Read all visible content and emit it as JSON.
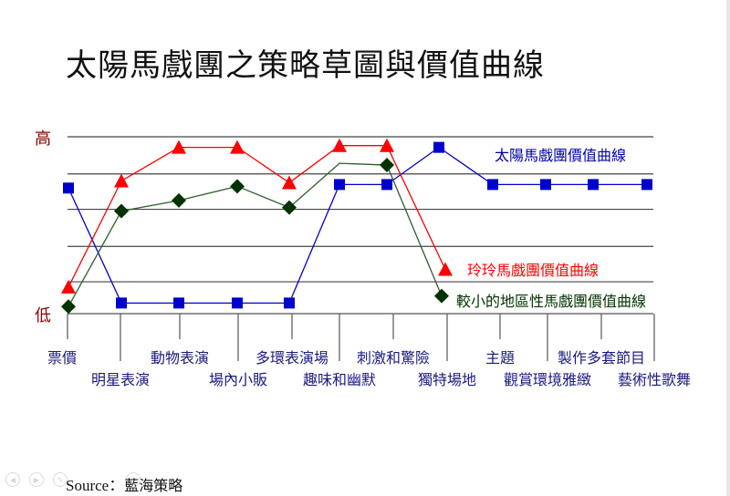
{
  "title": "太陽馬戲團之策略草圖與價值曲線",
  "footer": {
    "source_label": "Source：",
    "source_value": "藍海策略"
  },
  "nav_icons": [
    "prev-icon",
    "next-icon",
    "pen-icon",
    "more-icon"
  ],
  "chart_data": {
    "type": "line",
    "title": "太陽馬戲團之策略草圖與價值曲線",
    "ylabel_high": "高",
    "ylabel_low": "低",
    "y_scale": "relative value 0 (低) to 100 (高)",
    "ylim": [
      0,
      100
    ],
    "grid": true,
    "gridlines": [
      100,
      79,
      59,
      38,
      18
    ],
    "categories": [
      "票價",
      "明星表演",
      "動物表演",
      "場內小販",
      "多環表演場",
      "趣味和幽默",
      "刺激和驚險",
      "獨特場地",
      "主題",
      "觀賞環境雅緻",
      "製作多套節目",
      "藝術性歌舞"
    ],
    "category_label_rows": [
      0,
      1,
      0,
      1,
      0,
      1,
      0,
      1,
      0,
      1,
      0,
      1
    ],
    "series": [
      {
        "name": "太陽馬戲團價值曲線",
        "color": "#0000cc",
        "marker": "square",
        "values": [
          71,
          6,
          6,
          6,
          6,
          73,
          73,
          94,
          73,
          73,
          73,
          73
        ]
      },
      {
        "name": "玲玲馬戲團價值曲線",
        "color": "#ff0000",
        "marker": "triangle",
        "values": [
          15,
          75,
          94,
          94,
          74,
          95,
          95,
          25,
          null,
          null,
          null,
          null
        ],
        "end_x_offset": 7
      },
      {
        "name": "較小的地區性馬戲團價值曲線",
        "color": "#003300",
        "line_color": "#2e5e2e",
        "marker": "diamond",
        "values": [
          4,
          58,
          64,
          72,
          60,
          85,
          84,
          10,
          null,
          null,
          null,
          null
        ],
        "hidden_markers": [
          5
        ],
        "end_x_offset": 3
      }
    ],
    "legend": [
      {
        "label": "太陽馬戲團價值曲線",
        "color": "#0000aa"
      },
      {
        "label": "玲玲馬戲團價值曲線",
        "color": "#ff0000"
      },
      {
        "label": "較小的地區性馬戲團價值曲線",
        "color": "#003300"
      }
    ],
    "legend_position": "inline-right"
  }
}
